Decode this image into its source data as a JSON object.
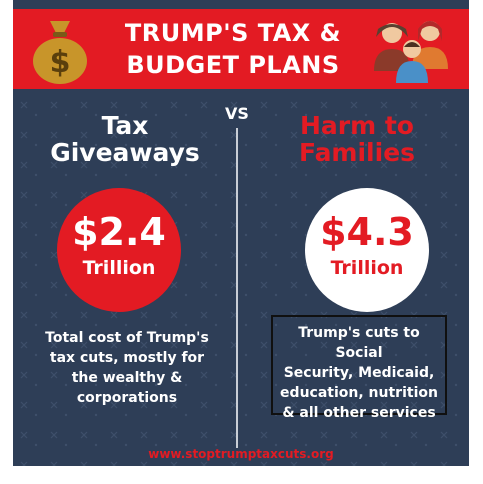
{
  "banner": {
    "title_line1": "TRUMP'S TAX &",
    "title_line2": "BUDGET PLANS",
    "left_icon": "money-bag-icon",
    "right_icon": "family-icon"
  },
  "vs_label": "VS",
  "left": {
    "heading_line1": "Tax",
    "heading_line2": "Giveaways",
    "amount": "$2.4",
    "unit": "Trillion",
    "desc_lines": [
      "Total cost of Trump's",
      "tax cuts, mostly for",
      "the wealthy &",
      "corporations"
    ]
  },
  "right": {
    "heading_line1": "Harm to",
    "heading_line2": "Families",
    "amount": "$4.3",
    "unit": "Trillion",
    "desc_lines": [
      "Trump's cuts to Social",
      "Security, Medicaid,",
      "education, nutrition",
      "& all other services"
    ]
  },
  "footer": {
    "url": "www.stoptrumptaxcuts.org"
  },
  "colors": {
    "background": "#2e3e57",
    "accent_red": "#e31b23",
    "white": "#ffffff"
  }
}
